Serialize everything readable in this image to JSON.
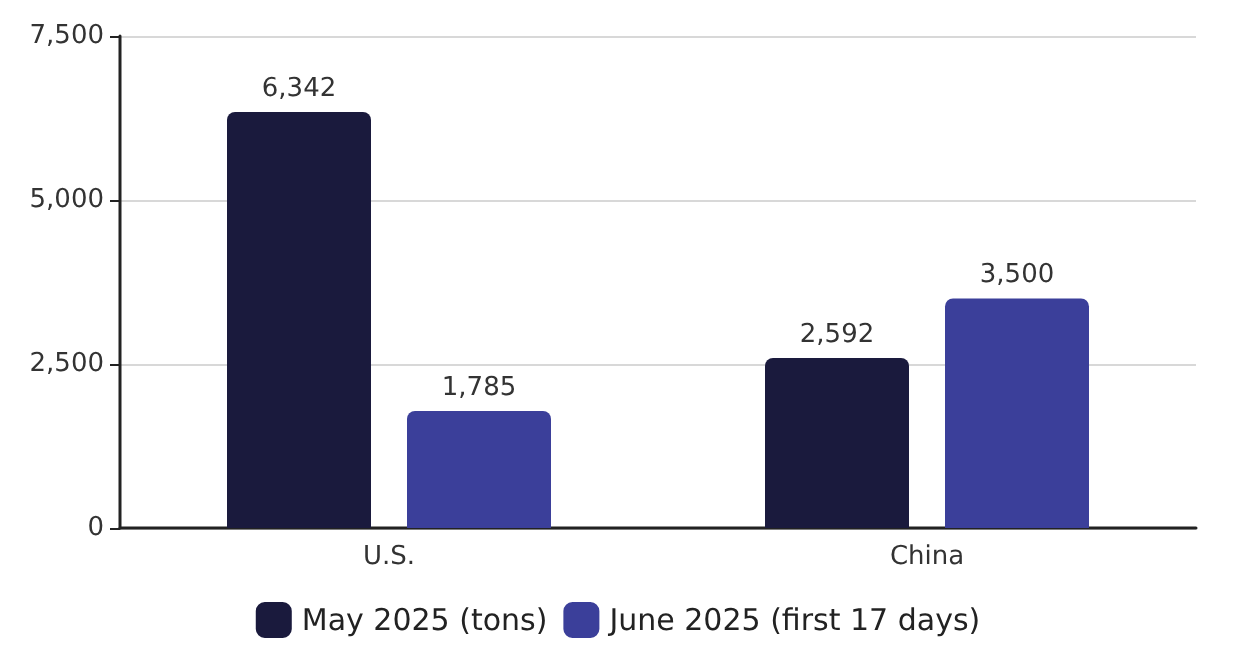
{
  "chart_data": {
    "type": "bar",
    "categories": [
      "U.S.",
      "China"
    ],
    "series": [
      {
        "name": "May 2025 (tons)",
        "color": "#1a1a3d",
        "values": [
          6342,
          2592
        ],
        "value_labels": [
          "6,342",
          "2,592"
        ]
      },
      {
        "name": "June 2025 (first 17 days)",
        "color": "#3b3f9a",
        "values": [
          1785,
          3500
        ],
        "value_labels": [
          "1,785",
          "3,500"
        ]
      }
    ],
    "ylim": [
      0,
      7500
    ],
    "yticks": [
      0,
      {
        "value": 2500,
        "label": "2,500"
      },
      {
        "value": 5000,
        "label": "5,000"
      },
      {
        "value": 7500,
        "label": "7,500"
      }
    ],
    "grid": "y",
    "legend": "bottom"
  }
}
